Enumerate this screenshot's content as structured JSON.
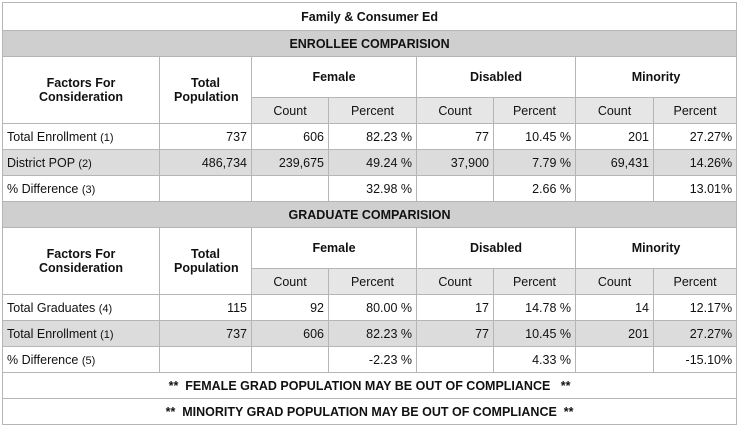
{
  "title": "Family & Consumer Ed",
  "sections": [
    {
      "heading": "ENROLLEE COMPARISION",
      "headers": {
        "factors": "Factors For Consideration",
        "total": "Total Population",
        "female": "Female",
        "disabled": "Disabled",
        "minority": "Minority"
      },
      "sub": [
        "Count",
        "Percent",
        "Count",
        "Percent",
        "Count",
        "Percent"
      ],
      "rows": [
        {
          "label": "Total Enrollment",
          "ref": "(1)",
          "total": "737",
          "f_count": "606",
          "f_pct": "82.23 %",
          "d_count": "77",
          "d_pct": "10.45 %",
          "m_count": "201",
          "m_pct": "27.27%"
        },
        {
          "label": "District POP",
          "ref": "(2)",
          "total": "486,734",
          "f_count": "239,675",
          "f_pct": "49.24 %",
          "d_count": "37,900",
          "d_pct": "7.79 %",
          "m_count": "69,431",
          "m_pct": "14.26%"
        },
        {
          "label": "% Difference",
          "ref": "(3)",
          "total": "",
          "f_count": "",
          "f_pct": "32.98 %",
          "d_count": "",
          "d_pct": "2.66 %",
          "m_count": "",
          "m_pct": "13.01%"
        }
      ]
    },
    {
      "heading": "GRADUATE COMPARISION",
      "headers": {
        "factors": "Factors For Consideration",
        "total": "Total Population",
        "female": "Female",
        "disabled": "Disabled",
        "minority": "Minority"
      },
      "sub": [
        "Count",
        "Percent",
        "Count",
        "Percent",
        "Count",
        "Percent"
      ],
      "rows": [
        {
          "label": "Total Graduates",
          "ref": "(4)",
          "total": "115",
          "f_count": "92",
          "f_pct": "80.00 %",
          "d_count": "17",
          "d_pct": "14.78 %",
          "m_count": "14",
          "m_pct": "12.17%"
        },
        {
          "label": "Total Enrollment",
          "ref": "(1)",
          "total": "737",
          "f_count": "606",
          "f_pct": "82.23 %",
          "d_count": "77",
          "d_pct": "10.45 %",
          "m_count": "201",
          "m_pct": "27.27%"
        },
        {
          "label": "% Difference",
          "ref": "(5)",
          "total": "",
          "f_count": "",
          "f_pct": "-2.23 %",
          "d_count": "",
          "d_pct": "4.33 %",
          "m_count": "",
          "m_pct": "-15.10%"
        }
      ]
    }
  ],
  "notes": [
    "**  FEMALE GRAD POPULATION MAY BE OUT OF COMPLIANCE   **",
    "**  MINORITY GRAD POPULATION MAY BE OUT OF COMPLIANCE  **"
  ]
}
